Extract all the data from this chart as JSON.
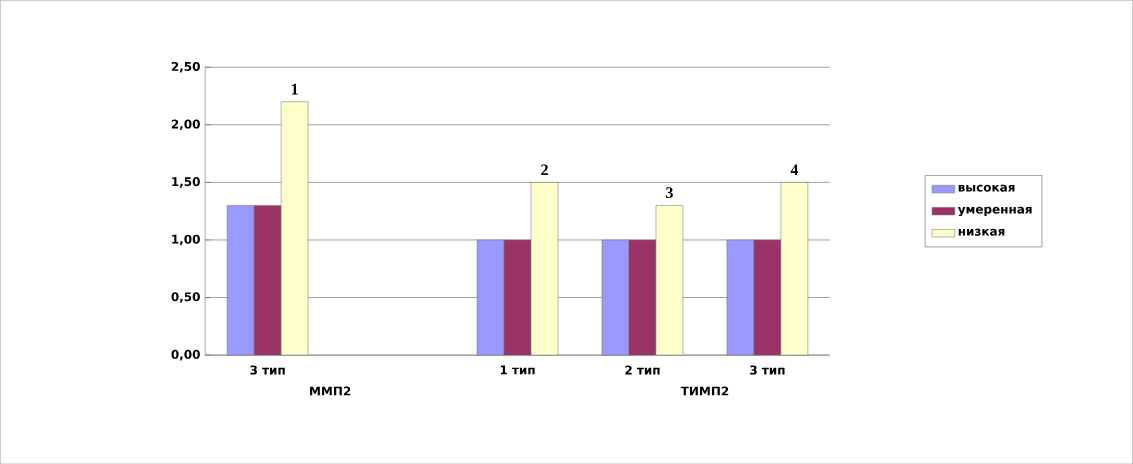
{
  "chart_data": {
    "type": "bar",
    "categories": [
      "3 тип",
      null,
      "1 тип",
      "2 тип",
      "3 тип"
    ],
    "series": [
      {
        "name": "высокая",
        "color": "#9999ff",
        "values": [
          1.3,
          null,
          1.0,
          1.0,
          1.0
        ]
      },
      {
        "name": "умеренная",
        "color": "#993366",
        "values": [
          1.3,
          null,
          1.0,
          1.0,
          1.0
        ]
      },
      {
        "name": "низкая",
        "color": "#ffffcc",
        "values": [
          2.2,
          null,
          1.5,
          1.3,
          1.5
        ]
      }
    ],
    "ylim": [
      0,
      2.5
    ],
    "yticks": [
      {
        "value": 0,
        "label": "0,00"
      },
      {
        "value": 0.5,
        "label": "0,50"
      },
      {
        "value": 1,
        "label": "1,00"
      },
      {
        "value": 1.5,
        "label": "1,50"
      },
      {
        "value": 2,
        "label": "2,00"
      },
      {
        "value": 2.5,
        "label": "2,50"
      }
    ],
    "grid": "y",
    "legend": "right",
    "annotations": [
      "ММП2",
      "ТИМП2",
      "1",
      "2",
      "3",
      "4"
    ]
  }
}
